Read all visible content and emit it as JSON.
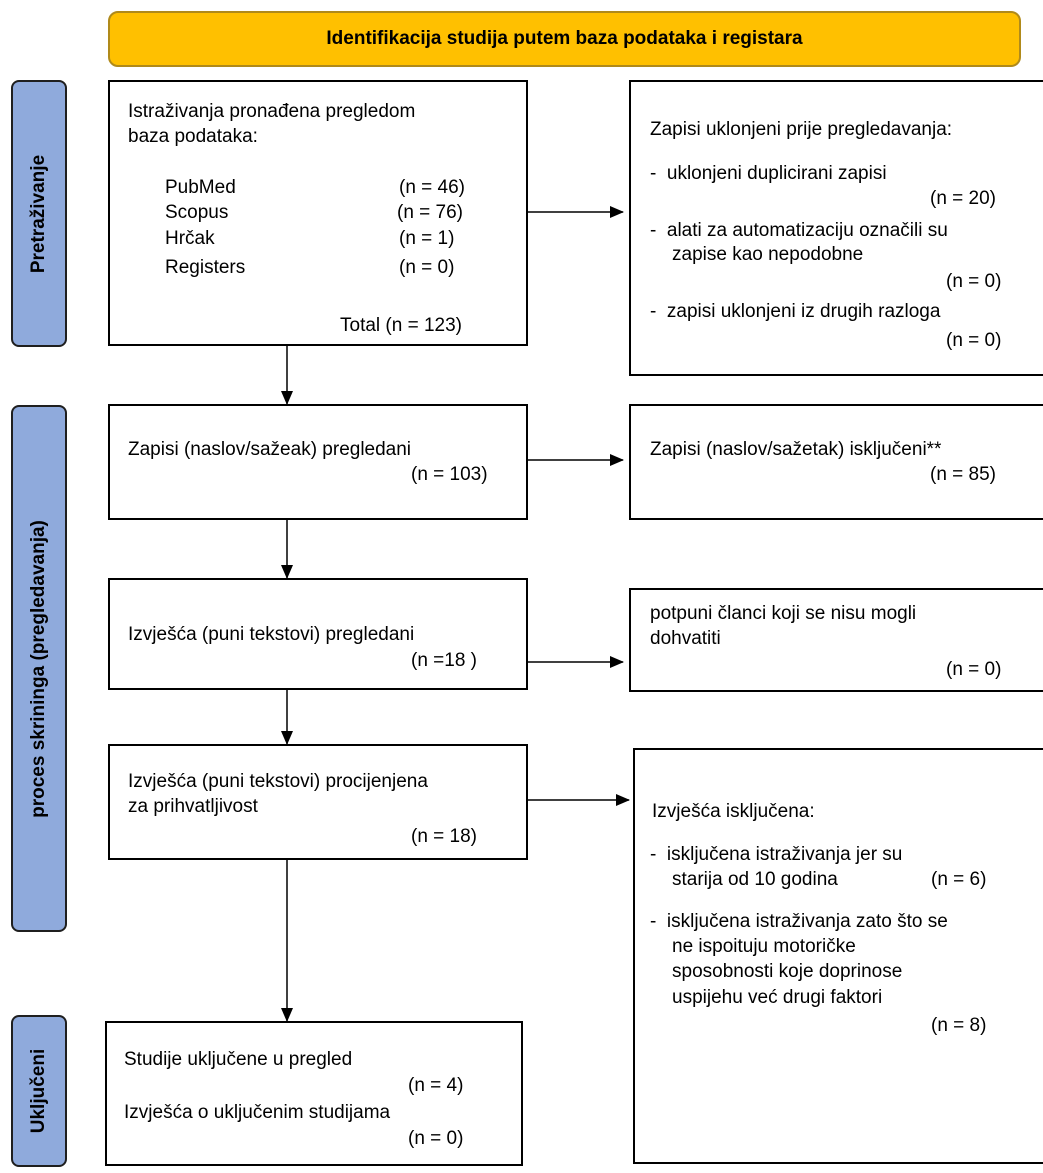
{
  "header": {
    "title": "Identifikacija studija putem baza podataka i registara"
  },
  "side": {
    "search": "Pretraživanje",
    "screening": "proces skrininga (pregledavanja)",
    "included": "Uključeni"
  },
  "identification": {
    "title_line1": "Istraživanja pronađena pregledom",
    "title_line2": "baza podataka:",
    "sources": [
      {
        "name": "PubMed",
        "n": "(n = 46)"
      },
      {
        "name": "Scopus",
        "n": "(n = 76)"
      },
      {
        "name": "Hrčak",
        "n": "(n = 1)"
      },
      {
        "name": "Registers",
        "n": "(n = 0)"
      }
    ],
    "total": "Total (n = 123)"
  },
  "removed": {
    "title": "Zapisi uklonjeni prije pregledavanja:",
    "item1": "-  uklonjeni duplicirani zapisi",
    "item1_n": "(n = 20)",
    "item2_line1": "-  alati za automatizaciju označili su",
    "item2_line2": "zapise kao nepodobne",
    "item2_n": "(n = 0)",
    "item3": "-  zapisi uklonjeni iz drugih razloga",
    "item3_n": "(n = 0)"
  },
  "screened": {
    "label": "Zapisi (naslov/sažeak) pregledani",
    "n": "(n = 103)"
  },
  "excluded": {
    "label": "Zapisi (naslov/sažetak) isključeni**",
    "n": "(n = 85)"
  },
  "reports_sought": {
    "label": "Izvješća (puni tekstovi) pregledani",
    "n": "(n =18 )"
  },
  "not_retrieved": {
    "line1": "potpuni članci koji se nisu mogli",
    "line2": "dohvatiti",
    "n": "(n = 0)"
  },
  "assessed": {
    "line1": "Izvješća (puni tekstovi) procijenjena",
    "line2": "za prihvatljivost",
    "n": "(n = 18)"
  },
  "reports_excluded": {
    "title": "Izvješća isključena:",
    "item1_line1": "-  isključena istraživanja jer su",
    "item1_line2": "starija od 10 godina",
    "item1_n": "(n = 6)",
    "item2_line1": "-  isključena istraživanja zato što se",
    "item2_line2": "ne ispoituju motoričke",
    "item2_line3": "sposobnosti koje doprinose",
    "item2_line4": "uspijehu već drugi faktori",
    "item2_n": "(n = 8)"
  },
  "included": {
    "line1": "Studije uključene u pregled",
    "n1": "(n = 4)",
    "line2": "Izvješća o uključenim studijama",
    "n2": "(n = 0)"
  }
}
